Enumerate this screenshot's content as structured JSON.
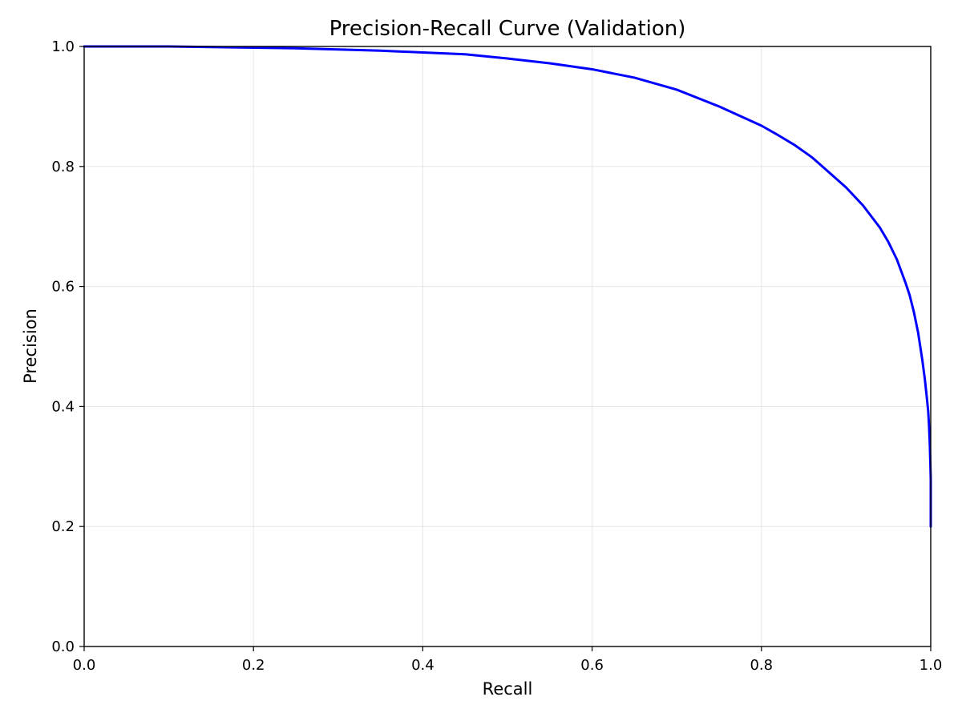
{
  "chart_data": {
    "type": "line",
    "title": "Precision-Recall Curve (Validation)",
    "xlabel": "Recall",
    "ylabel": "Precision",
    "xlim": [
      0.0,
      1.0
    ],
    "ylim": [
      0.0,
      1.0
    ],
    "x_ticks": [
      0.0,
      0.2,
      0.4,
      0.6,
      0.8,
      1.0
    ],
    "y_ticks": [
      0.0,
      0.2,
      0.4,
      0.6,
      0.8,
      1.0
    ],
    "x_tick_labels": [
      "0.0",
      "0.2",
      "0.4",
      "0.6",
      "0.8",
      "1.0"
    ],
    "y_tick_labels": [
      "0.0",
      "0.2",
      "0.4",
      "0.6",
      "0.8",
      "1.0"
    ],
    "grid": true,
    "legend": "none",
    "series": [
      {
        "color": "#0000ff",
        "x": [
          0.0,
          0.05,
          0.1,
          0.15,
          0.2,
          0.25,
          0.3,
          0.35,
          0.4,
          0.45,
          0.5,
          0.55,
          0.6,
          0.65,
          0.7,
          0.75,
          0.8,
          0.82,
          0.84,
          0.86,
          0.88,
          0.9,
          0.92,
          0.94,
          0.95,
          0.96,
          0.97,
          0.975,
          0.98,
          0.985,
          0.99,
          0.993,
          0.995,
          0.997,
          0.998,
          0.999,
          1.0,
          1.0
        ],
        "y": [
          1.0,
          1.0,
          1.0,
          0.999,
          0.998,
          0.997,
          0.995,
          0.993,
          0.99,
          0.987,
          0.98,
          0.972,
          0.962,
          0.948,
          0.928,
          0.9,
          0.868,
          0.852,
          0.835,
          0.815,
          0.79,
          0.765,
          0.735,
          0.698,
          0.674,
          0.645,
          0.607,
          0.586,
          0.558,
          0.524,
          0.478,
          0.446,
          0.42,
          0.392,
          0.368,
          0.333,
          0.28,
          0.2
        ]
      }
    ]
  }
}
